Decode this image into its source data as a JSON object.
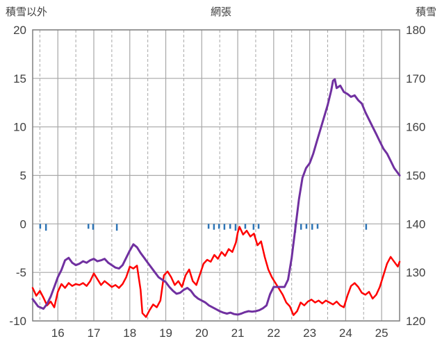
{
  "header": {
    "left_axis_title": "積雪以外",
    "title": "網張",
    "right_axis_title": "積雪"
  },
  "colors": {
    "grid": "#a6a6a6",
    "border": "#7f7f7f",
    "text": "#404040",
    "red": "#ff0000",
    "purple": "#7030a0",
    "blue": "#2e75b6"
  },
  "chart_data": {
    "type": "line",
    "title": "網張",
    "x_range": [
      15.3,
      25.5
    ],
    "x_ticks": [
      16,
      17,
      18,
      19,
      20,
      21,
      22,
      23,
      24,
      25
    ],
    "x_minor_ticks": [
      15.5,
      16.5,
      17.5,
      18.5,
      19.5,
      20.5,
      21.5,
      22.5,
      23.5,
      24.5
    ],
    "left_axis": {
      "label": "積雪以外",
      "min": -10,
      "max": 20,
      "ticks": [
        20,
        15,
        10,
        5,
        0,
        -5,
        -10
      ]
    },
    "right_axis": {
      "label": "積雪",
      "min": 120,
      "max": 180,
      "ticks": [
        180,
        170,
        160,
        150,
        140,
        130,
        120
      ]
    },
    "grid": true,
    "legend": "none",
    "series": [
      {
        "id": "sekisetsu-igai",
        "name": "積雪以外",
        "axis": "left",
        "color": "#ff0000",
        "width": 2.5,
        "points": [
          [
            15.3,
            -6.6
          ],
          [
            15.4,
            -7.4
          ],
          [
            15.5,
            -6.9
          ],
          [
            15.6,
            -7.6
          ],
          [
            15.7,
            -8.4
          ],
          [
            15.8,
            -8.0
          ],
          [
            15.9,
            -8.6
          ],
          [
            16.0,
            -7.0
          ],
          [
            16.1,
            -6.2
          ],
          [
            16.2,
            -6.6
          ],
          [
            16.3,
            -6.1
          ],
          [
            16.4,
            -6.4
          ],
          [
            16.5,
            -6.2
          ],
          [
            16.6,
            -6.3
          ],
          [
            16.7,
            -6.1
          ],
          [
            16.8,
            -6.4
          ],
          [
            16.9,
            -5.9
          ],
          [
            17.0,
            -5.1
          ],
          [
            17.1,
            -5.7
          ],
          [
            17.2,
            -6.3
          ],
          [
            17.3,
            -5.9
          ],
          [
            17.4,
            -6.2
          ],
          [
            17.5,
            -6.5
          ],
          [
            17.6,
            -6.3
          ],
          [
            17.7,
            -6.6
          ],
          [
            17.8,
            -6.2
          ],
          [
            17.9,
            -5.5
          ],
          [
            18.0,
            -4.4
          ],
          [
            18.1,
            -4.6
          ],
          [
            18.2,
            -4.3
          ],
          [
            18.3,
            -6.8
          ],
          [
            18.35,
            -9.2
          ],
          [
            18.45,
            -9.6
          ],
          [
            18.55,
            -8.9
          ],
          [
            18.65,
            -8.3
          ],
          [
            18.75,
            -8.6
          ],
          [
            18.85,
            -7.9
          ],
          [
            18.95,
            -5.3
          ],
          [
            19.05,
            -4.9
          ],
          [
            19.15,
            -5.5
          ],
          [
            19.25,
            -6.3
          ],
          [
            19.35,
            -5.9
          ],
          [
            19.45,
            -6.5
          ],
          [
            19.55,
            -5.3
          ],
          [
            19.65,
            -4.7
          ],
          [
            19.75,
            -5.9
          ],
          [
            19.85,
            -6.3
          ],
          [
            19.95,
            -5.2
          ],
          [
            20.05,
            -4.1
          ],
          [
            20.15,
            -3.7
          ],
          [
            20.25,
            -3.9
          ],
          [
            20.35,
            -3.2
          ],
          [
            20.45,
            -3.6
          ],
          [
            20.55,
            -2.9
          ],
          [
            20.65,
            -3.3
          ],
          [
            20.75,
            -2.6
          ],
          [
            20.85,
            -2.9
          ],
          [
            20.95,
            -1.9
          ],
          [
            21.0,
            -0.9
          ],
          [
            21.05,
            -0.3
          ],
          [
            21.15,
            -1.1
          ],
          [
            21.25,
            -0.7
          ],
          [
            21.35,
            -1.3
          ],
          [
            21.45,
            -1.0
          ],
          [
            21.55,
            -2.2
          ],
          [
            21.65,
            -1.8
          ],
          [
            21.75,
            -3.4
          ],
          [
            21.85,
            -4.7
          ],
          [
            21.95,
            -5.5
          ],
          [
            22.05,
            -6.1
          ],
          [
            22.15,
            -6.7
          ],
          [
            22.25,
            -7.3
          ],
          [
            22.35,
            -8.1
          ],
          [
            22.45,
            -8.5
          ],
          [
            22.55,
            -9.4
          ],
          [
            22.65,
            -9.0
          ],
          [
            22.75,
            -8.1
          ],
          [
            22.85,
            -8.4
          ],
          [
            22.95,
            -8.0
          ],
          [
            23.05,
            -7.8
          ],
          [
            23.15,
            -8.1
          ],
          [
            23.25,
            -7.9
          ],
          [
            23.35,
            -8.2
          ],
          [
            23.45,
            -7.9
          ],
          [
            23.55,
            -8.1
          ],
          [
            23.65,
            -8.3
          ],
          [
            23.75,
            -8.0
          ],
          [
            23.85,
            -8.4
          ],
          [
            23.95,
            -8.6
          ],
          [
            24.05,
            -7.4
          ],
          [
            24.15,
            -6.4
          ],
          [
            24.25,
            -6.1
          ],
          [
            24.35,
            -6.5
          ],
          [
            24.45,
            -7.1
          ],
          [
            24.55,
            -7.3
          ],
          [
            24.65,
            -7.0
          ],
          [
            24.75,
            -7.7
          ],
          [
            24.85,
            -7.3
          ],
          [
            24.95,
            -6.5
          ],
          [
            25.05,
            -5.3
          ],
          [
            25.15,
            -4.1
          ],
          [
            25.25,
            -3.4
          ],
          [
            25.35,
            -3.9
          ],
          [
            25.45,
            -4.4
          ],
          [
            25.5,
            -3.9
          ]
        ]
      },
      {
        "id": "sekisetsu",
        "name": "積雪",
        "axis": "right",
        "color": "#7030a0",
        "width": 3,
        "points": [
          [
            15.3,
            124.5
          ],
          [
            15.45,
            123.0
          ],
          [
            15.6,
            122.5
          ],
          [
            15.7,
            123.5
          ],
          [
            15.8,
            125.0
          ],
          [
            15.9,
            127.0
          ],
          [
            16.0,
            129.0
          ],
          [
            16.1,
            130.5
          ],
          [
            16.2,
            132.5
          ],
          [
            16.3,
            133.0
          ],
          [
            16.4,
            132.0
          ],
          [
            16.5,
            131.5
          ],
          [
            16.6,
            131.8
          ],
          [
            16.7,
            132.3
          ],
          [
            16.8,
            132.0
          ],
          [
            16.9,
            132.5
          ],
          [
            17.0,
            132.8
          ],
          [
            17.1,
            132.3
          ],
          [
            17.2,
            132.5
          ],
          [
            17.3,
            132.8
          ],
          [
            17.4,
            132.0
          ],
          [
            17.5,
            131.5
          ],
          [
            17.6,
            131.0
          ],
          [
            17.7,
            130.8
          ],
          [
            17.8,
            131.5
          ],
          [
            17.9,
            133.0
          ],
          [
            18.0,
            134.5
          ],
          [
            18.1,
            135.8
          ],
          [
            18.2,
            135.2
          ],
          [
            18.3,
            134.0
          ],
          [
            18.4,
            133.0
          ],
          [
            18.5,
            132.0
          ],
          [
            18.6,
            131.0
          ],
          [
            18.7,
            130.0
          ],
          [
            18.8,
            129.0
          ],
          [
            18.9,
            128.5
          ],
          [
            19.0,
            128.0
          ],
          [
            19.1,
            127.0
          ],
          [
            19.2,
            126.2
          ],
          [
            19.3,
            125.6
          ],
          [
            19.4,
            125.8
          ],
          [
            19.5,
            126.4
          ],
          [
            19.6,
            126.8
          ],
          [
            19.7,
            126.2
          ],
          [
            19.8,
            125.2
          ],
          [
            19.9,
            124.6
          ],
          [
            20.0,
            124.2
          ],
          [
            20.1,
            123.8
          ],
          [
            20.2,
            123.2
          ],
          [
            20.3,
            122.8
          ],
          [
            20.4,
            122.4
          ],
          [
            20.5,
            122.0
          ],
          [
            20.6,
            121.7
          ],
          [
            20.7,
            121.5
          ],
          [
            20.8,
            121.7
          ],
          [
            20.9,
            121.4
          ],
          [
            21.0,
            121.3
          ],
          [
            21.1,
            121.5
          ],
          [
            21.2,
            121.8
          ],
          [
            21.3,
            122.0
          ],
          [
            21.4,
            121.9
          ],
          [
            21.5,
            122.0
          ],
          [
            21.6,
            122.2
          ],
          [
            21.7,
            122.6
          ],
          [
            21.8,
            123.2
          ],
          [
            21.9,
            125.5
          ],
          [
            22.0,
            127.0
          ],
          [
            22.1,
            127.0
          ],
          [
            22.2,
            127.0
          ],
          [
            22.3,
            127.0
          ],
          [
            22.4,
            128.5
          ],
          [
            22.5,
            133.0
          ],
          [
            22.6,
            139.0
          ],
          [
            22.65,
            142.0
          ],
          [
            22.7,
            145.0
          ],
          [
            22.8,
            149.5
          ],
          [
            22.9,
            151.5
          ],
          [
            23.0,
            152.5
          ],
          [
            23.05,
            153.5
          ],
          [
            23.1,
            154.5
          ],
          [
            23.2,
            157.0
          ],
          [
            23.3,
            159.5
          ],
          [
            23.4,
            162.0
          ],
          [
            23.5,
            164.5
          ],
          [
            23.6,
            167.5
          ],
          [
            23.65,
            169.5
          ],
          [
            23.7,
            169.8
          ],
          [
            23.75,
            168.0
          ],
          [
            23.85,
            168.5
          ],
          [
            23.95,
            167.2
          ],
          [
            24.05,
            166.8
          ],
          [
            24.15,
            166.2
          ],
          [
            24.25,
            166.5
          ],
          [
            24.35,
            165.5
          ],
          [
            24.45,
            164.8
          ],
          [
            24.55,
            163.0
          ],
          [
            24.65,
            161.5
          ],
          [
            24.75,
            160.0
          ],
          [
            24.85,
            158.5
          ],
          [
            24.95,
            157.0
          ],
          [
            25.05,
            155.5
          ],
          [
            25.15,
            154.5
          ],
          [
            25.25,
            153.0
          ],
          [
            25.35,
            151.5
          ],
          [
            25.45,
            150.5
          ],
          [
            25.5,
            150.0
          ]
        ]
      }
    ],
    "event_ticks": {
      "color": "#2e75b6",
      "baseline": 0,
      "ticks": [
        {
          "x": 15.51,
          "h": 0.5
        },
        {
          "x": 15.67,
          "h": 0.7
        },
        {
          "x": 16.85,
          "h": 0.5
        },
        {
          "x": 16.98,
          "h": 0.6
        },
        {
          "x": 17.64,
          "h": 0.7
        },
        {
          "x": 20.19,
          "h": 0.5
        },
        {
          "x": 20.34,
          "h": 0.6
        },
        {
          "x": 20.48,
          "h": 0.5
        },
        {
          "x": 20.63,
          "h": 0.6
        },
        {
          "x": 20.79,
          "h": 0.5
        },
        {
          "x": 20.94,
          "h": 0.7
        },
        {
          "x": 21.21,
          "h": 0.5
        },
        {
          "x": 21.44,
          "h": 0.6
        },
        {
          "x": 21.58,
          "h": 0.5
        },
        {
          "x": 22.6,
          "h": 0.9
        },
        {
          "x": 22.76,
          "h": 0.6
        },
        {
          "x": 22.91,
          "h": 0.5
        },
        {
          "x": 23.07,
          "h": 0.6
        },
        {
          "x": 23.22,
          "h": 0.5
        },
        {
          "x": 24.57,
          "h": 0.6
        }
      ]
    }
  }
}
